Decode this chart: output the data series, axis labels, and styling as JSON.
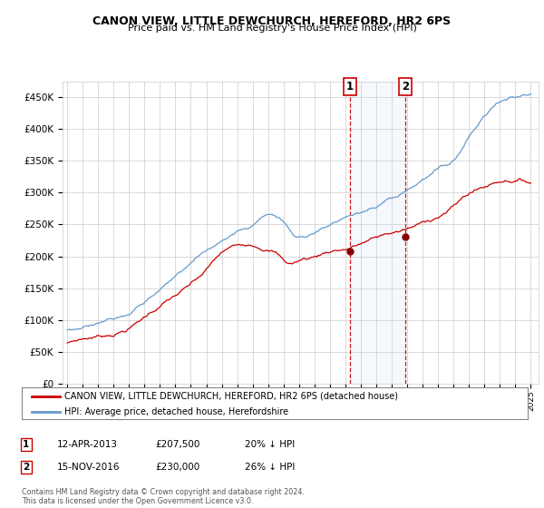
{
  "title": "CANON VIEW, LITTLE DEWCHURCH, HEREFORD, HR2 6PS",
  "subtitle": "Price paid vs. HM Land Registry's House Price Index (HPI)",
  "ylabel_ticks": [
    "£0",
    "£50K",
    "£100K",
    "£150K",
    "£200K",
    "£250K",
    "£300K",
    "£350K",
    "£400K",
    "£450K"
  ],
  "ylim": [
    0,
    475000
  ],
  "ytick_vals": [
    0,
    50000,
    100000,
    150000,
    200000,
    250000,
    300000,
    350000,
    400000,
    450000
  ],
  "xlim_start": 1994.7,
  "xlim_end": 2025.5,
  "annotation1": {
    "label": "1",
    "x": 2013.27,
    "price": 207500,
    "date": "12-APR-2013",
    "pct": "20%"
  },
  "annotation2": {
    "label": "2",
    "x": 2016.88,
    "price": 230000,
    "date": "15-NOV-2016",
    "pct": "26%"
  },
  "legend_red": "CANON VIEW, LITTLE DEWCHURCH, HEREFORD, HR2 6PS (detached house)",
  "legend_blue": "HPI: Average price, detached house, Herefordshire",
  "footer": "Contains HM Land Registry data © Crown copyright and database right 2024.\nThis data is licensed under the Open Government Licence v3.0.",
  "red_color": "#cc0000",
  "blue_color": "#6699cc",
  "bg_color": "#ffffff",
  "grid_color": "#cccccc",
  "highlight_fill": "#ddeeff"
}
